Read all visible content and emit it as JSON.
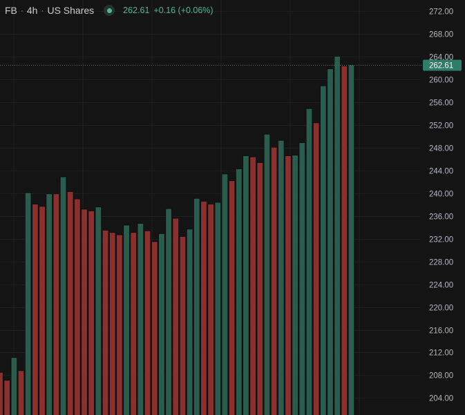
{
  "header": {
    "symbol": "FB",
    "interval": "4h",
    "exchange": "US Shares",
    "last": "262.61",
    "change": "+0.16 (+0.06%)"
  },
  "colors": {
    "up": "#2b5d4e",
    "down": "#8c2f2f",
    "price_label": "#2f7d67",
    "accent": "#4fb49a"
  },
  "chart_data": {
    "type": "bar",
    "ylim": [
      201.0,
      274.0
    ],
    "y_ticks": [
      "272.00",
      "268.00",
      "264.00",
      "260.00",
      "256.00",
      "252.00",
      "248.00",
      "244.00",
      "240.00",
      "236.00",
      "232.00",
      "228.00",
      "224.00",
      "220.00",
      "216.00",
      "212.00",
      "208.00",
      "204.00"
    ],
    "last_price": 262.61,
    "last_price_label": "262.61",
    "grid": true,
    "values": [
      208.5,
      207.1,
      211.1,
      208.8,
      240.1,
      238.1,
      237.7,
      239.9,
      239.9,
      242.9,
      240.3,
      239.0,
      237.2,
      236.9,
      237.6,
      233.5,
      233.1,
      232.7,
      234.4,
      233.1,
      234.7,
      233.4,
      231.5,
      232.9,
      237.3,
      235.6,
      232.4,
      233.7,
      239.1,
      238.6,
      238.1,
      238.4,
      243.4,
      242.2,
      244.3,
      246.6,
      246.4,
      245.4,
      250.4,
      248.1,
      249.3,
      246.6,
      246.7,
      248.9,
      254.9,
      252.4,
      258.9,
      261.9,
      264.1,
      262.4,
      262.6
    ],
    "directions": [
      "down",
      "down",
      "up",
      "down",
      "up",
      "down",
      "down",
      "up",
      "down",
      "up",
      "down",
      "down",
      "down",
      "down",
      "up",
      "down",
      "down",
      "down",
      "up",
      "down",
      "up",
      "down",
      "down",
      "up",
      "up",
      "down",
      "down",
      "up",
      "up",
      "down",
      "down",
      "up",
      "up",
      "down",
      "up",
      "up",
      "down",
      "down",
      "up",
      "down",
      "up",
      "down",
      "up",
      "up",
      "up",
      "down",
      "up",
      "up",
      "up",
      "down",
      "up"
    ]
  }
}
